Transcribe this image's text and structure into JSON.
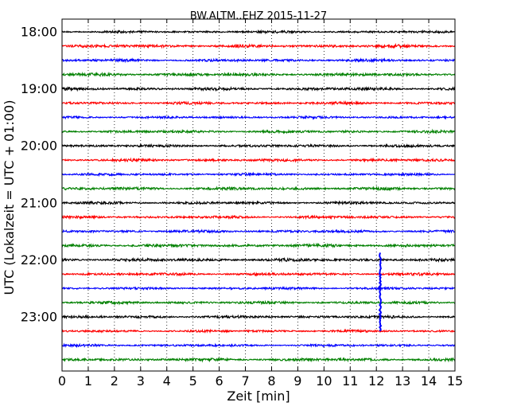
{
  "chart_data": {
    "type": "line",
    "title": "BW.ALTM..EHZ 2015-11-27",
    "xlabel": "Zeit  [min]",
    "ylabel": "UTC (Lokalzeit = UTC + 01:00)",
    "xlim": [
      0,
      15
    ],
    "x_ticks": [
      "0",
      "1",
      "2",
      "3",
      "4",
      "5",
      "6",
      "7",
      "8",
      "9",
      "10",
      "11",
      "12",
      "13",
      "14",
      "15"
    ],
    "y_ticks": [
      "18:00",
      "19:00",
      "20:00",
      "21:00",
      "22:00",
      "23:00"
    ],
    "y_tick_rows": [
      0,
      4,
      8,
      12,
      16,
      20
    ],
    "row_count": 24,
    "row_start": "18:00",
    "row_interval_min": 15,
    "color_cycle": [
      "#000000",
      "#ff0000",
      "#0000ff",
      "#008000"
    ],
    "grid": {
      "x": "dotted",
      "y": "none"
    },
    "event": {
      "time_min": 12.15,
      "trace_color": "#0000ff",
      "row_range": [
        15.5,
        21.0
      ]
    },
    "noise_amplitude_rows": [
      0.08,
      0.1,
      0.09,
      0.1,
      0.1,
      0.09,
      0.08,
      0.09,
      0.09,
      0.09,
      0.08,
      0.1,
      0.09,
      0.09,
      0.09,
      0.1,
      0.1,
      0.09,
      0.08,
      0.09,
      0.09,
      0.08,
      0.08,
      0.1
    ]
  }
}
